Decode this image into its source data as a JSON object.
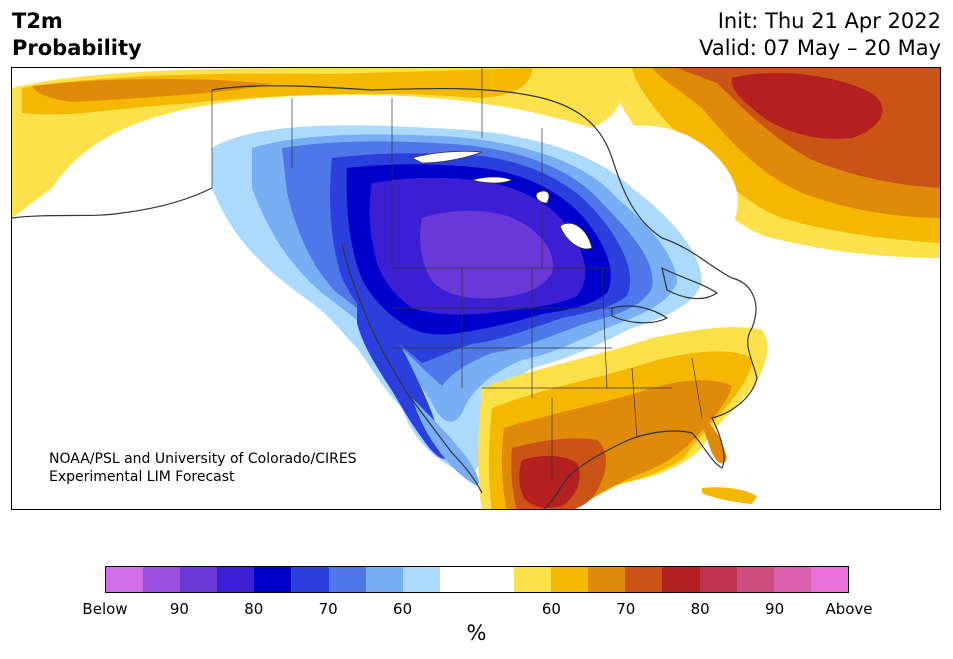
{
  "header": {
    "title_line1": "T2m",
    "title_line2": "Probability",
    "init": "Init: Thu 21 Apr 2022",
    "valid": "Valid: 07 May – 20 May"
  },
  "map": {
    "credit_line1": "NOAA/PSL and University of Colorado/CIRES",
    "credit_line2": "Experimental LIM Forecast"
  },
  "colorbar": {
    "units": "%",
    "labels": [
      "Below",
      "90",
      "80",
      "70",
      "60",
      "60",
      "70",
      "80",
      "90",
      "Above"
    ],
    "colors": [
      "#d46de8",
      "#9b4fe0",
      "#6a38d6",
      "#3c1fd3",
      "#0000cd",
      "#2a3fdc",
      "#4f77ea",
      "#78aef4",
      "#acdafc",
      "#ffffff",
      "#ffffff",
      "#fde14a",
      "#f4b800",
      "#e08a0b",
      "#c95416",
      "#b41f1f",
      "#c0344e",
      "#cf4d7e",
      "#dc5fae",
      "#e870d8"
    ]
  }
}
